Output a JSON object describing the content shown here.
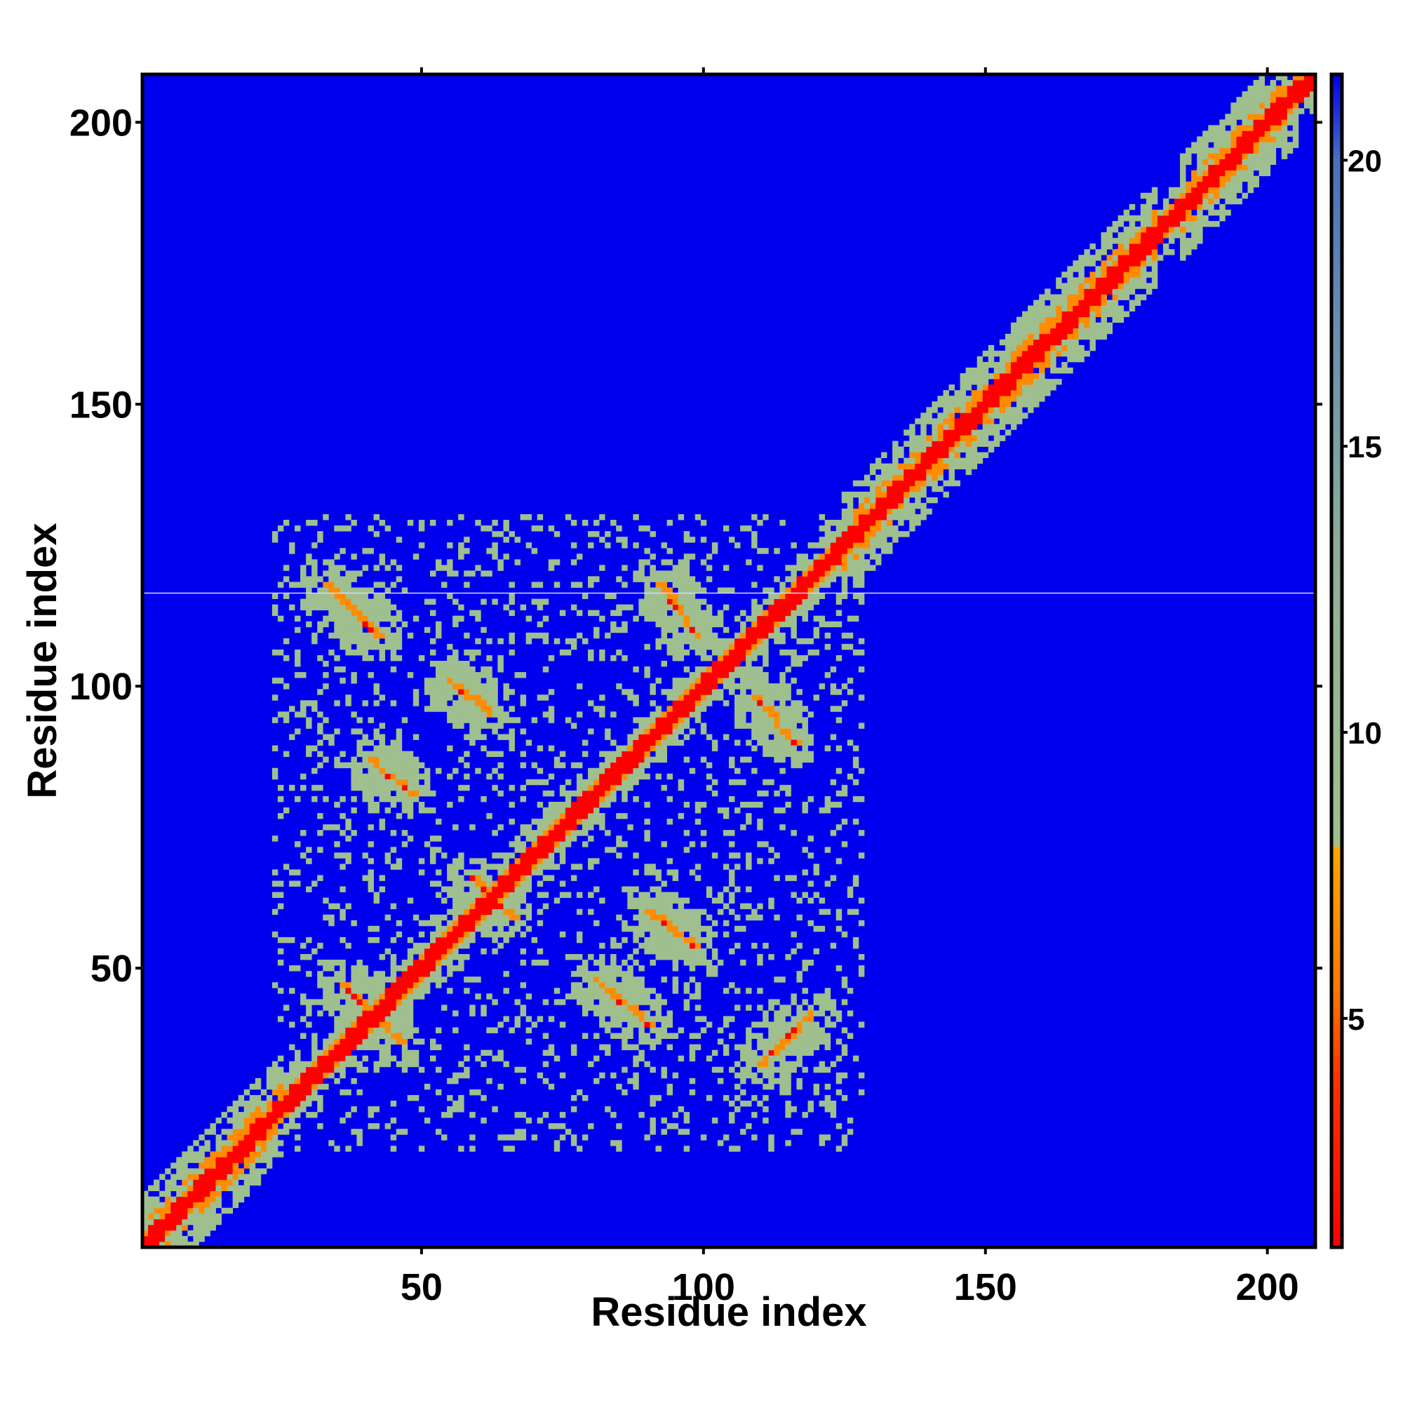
{
  "chart_data": {
    "type": "heatmap",
    "title": "",
    "xlabel": "Residue index",
    "ylabel": "Residue index",
    "xlim": [
      1,
      208
    ],
    "ylim": [
      1,
      208
    ],
    "x_ticks": [
      50,
      100,
      150,
      200
    ],
    "y_ticks": [
      50,
      100,
      150,
      200
    ],
    "x_tick_labels": [
      "50",
      "100",
      "150",
      "200"
    ],
    "y_tick_labels": [
      "50",
      "100",
      "150",
      "200"
    ],
    "colorbar": {
      "range": [
        1,
        21.5
      ],
      "ticks": [
        5,
        10,
        15,
        20
      ],
      "tick_labels": [
        "5",
        "10",
        "15",
        "20"
      ],
      "stops": [
        {
          "value": 1,
          "color": "#ff0000"
        },
        {
          "value": 4,
          "color": "#ff3300"
        },
        {
          "value": 5.5,
          "color": "#ff7700"
        },
        {
          "value": 8,
          "color": "#ffa500"
        },
        {
          "value": 8.01,
          "color": "#9fbf8f"
        },
        {
          "value": 13,
          "color": "#8fae95"
        },
        {
          "value": 17,
          "color": "#6a8fb0"
        },
        {
          "value": 20,
          "color": "#4a6fc0"
        },
        {
          "value": 21.5,
          "color": "#0000ee"
        }
      ]
    },
    "background_color": "#0000ee",
    "contact_colors": {
      "strong": "#ff0000",
      "medium": "#ff8c00",
      "weak": "#9fbf8f"
    },
    "diagonal": {
      "from": 1,
      "to": 208
    },
    "off_diagonal_bands": [
      {
        "x": [
          33,
          42
        ],
        "y": [
          118,
          109
        ]
      },
      {
        "x": [
          55,
          62
        ],
        "y": [
          101,
          95
        ]
      },
      {
        "x": [
          41,
          48
        ],
        "y": [
          87,
          81
        ]
      },
      {
        "x": [
          92,
          99
        ],
        "y": [
          118,
          109
        ]
      },
      {
        "x": [
          109,
          116
        ],
        "y": [
          98,
          90
        ]
      },
      {
        "x": [
          59,
          66
        ],
        "y": [
          66,
          59
        ]
      },
      {
        "x": [
          90,
          98
        ],
        "y": [
          60,
          54
        ]
      },
      {
        "x": [
          81,
          90
        ],
        "y": [
          48,
          40
        ]
      },
      {
        "x": [
          110,
          119
        ],
        "y": [
          33,
          42
        ]
      },
      {
        "x": [
          36,
          46
        ],
        "y": [
          47,
          37
        ]
      }
    ],
    "broad_regions": [
      {
        "x": [
          125,
          160
        ],
        "y": [
          125,
          160
        ]
      },
      {
        "x": [
          155,
          180
        ],
        "y": [
          160,
          180
        ]
      },
      {
        "x": [
          185,
          205
        ],
        "y": [
          185,
          205
        ]
      },
      {
        "x": [
          1,
          25
        ],
        "y": [
          1,
          25
        ]
      }
    ],
    "neighborhood_region": {
      "x": [
        24,
        128
      ],
      "y": [
        18,
        130
      ]
    }
  }
}
